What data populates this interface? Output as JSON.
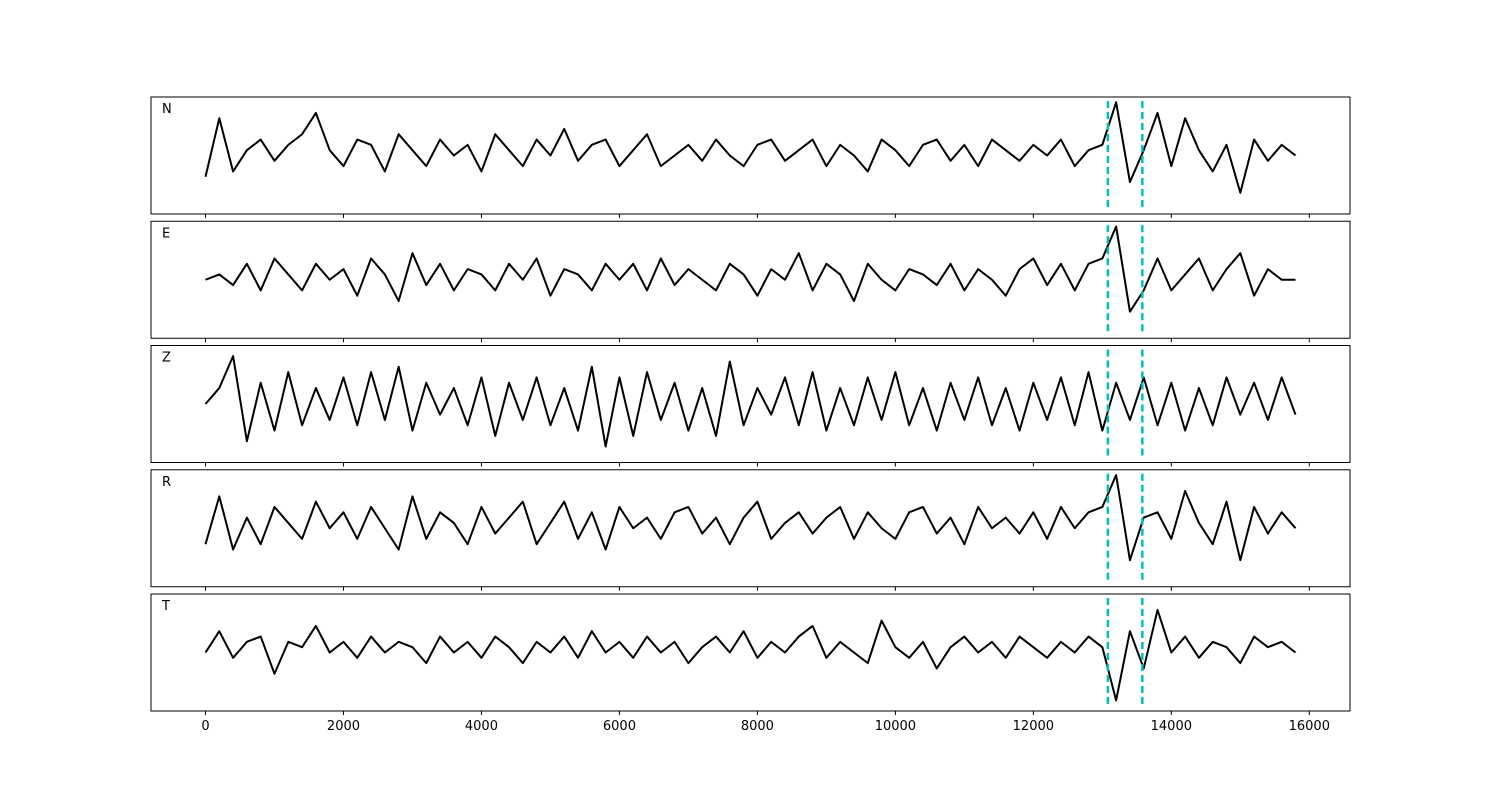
{
  "chart_data": {
    "type": "line",
    "x": [
      0,
      200,
      400,
      600,
      800,
      1000,
      1200,
      1400,
      1600,
      1800,
      2000,
      2200,
      2400,
      2600,
      2800,
      3000,
      3200,
      3400,
      3600,
      3800,
      4000,
      4200,
      4400,
      4600,
      4800,
      5000,
      5200,
      5400,
      5600,
      5800,
      6000,
      6200,
      6400,
      6600,
      6800,
      7000,
      7200,
      7400,
      7600,
      7800,
      8000,
      8200,
      8400,
      8600,
      8800,
      9000,
      9200,
      9400,
      9600,
      9800,
      10000,
      10200,
      10400,
      10600,
      10800,
      11000,
      11200,
      11400,
      11600,
      11800,
      12000,
      12200,
      12400,
      12600,
      12800,
      13000,
      13200,
      13400,
      13600,
      13800,
      14000,
      14200,
      14400,
      14600,
      14800,
      15000,
      15200,
      15400,
      15600,
      15800
    ],
    "xlim": [
      -790,
      16590
    ],
    "xticks": [
      0,
      2000,
      4000,
      6000,
      8000,
      10000,
      12000,
      14000,
      16000
    ],
    "ylim": [
      -1.1,
      1.1
    ],
    "vlines": {
      "x": [
        13080,
        13580
      ],
      "color": "#00bfbf"
    },
    "series": [
      {
        "name": "N",
        "color": "#000000",
        "values": [
          -0.4,
          0.7,
          -0.3,
          0.1,
          0.3,
          -0.1,
          0.2,
          0.4,
          0.8,
          0.1,
          -0.2,
          0.3,
          0.2,
          -0.3,
          0.4,
          0.1,
          -0.2,
          0.3,
          0.0,
          0.2,
          -0.3,
          0.4,
          0.1,
          -0.2,
          0.3,
          0.0,
          0.5,
          -0.1,
          0.2,
          0.3,
          -0.2,
          0.1,
          0.4,
          -0.2,
          0.0,
          0.2,
          -0.1,
          0.3,
          0.0,
          -0.2,
          0.2,
          0.3,
          -0.1,
          0.1,
          0.3,
          -0.2,
          0.2,
          0.0,
          -0.3,
          0.3,
          0.1,
          -0.2,
          0.2,
          0.3,
          -0.1,
          0.2,
          -0.2,
          0.3,
          0.1,
          -0.1,
          0.2,
          0.0,
          0.3,
          -0.2,
          0.1,
          0.2,
          1.0,
          -0.5,
          0.1,
          0.8,
          -0.2,
          0.7,
          0.1,
          -0.3,
          0.2,
          -0.7,
          0.3,
          -0.1,
          0.2,
          0.0
        ]
      },
      {
        "name": "E",
        "color": "#000000",
        "values": [
          0.0,
          0.1,
          -0.1,
          0.3,
          -0.2,
          0.4,
          0.1,
          -0.2,
          0.3,
          0.0,
          0.2,
          -0.3,
          0.4,
          0.1,
          -0.4,
          0.5,
          -0.1,
          0.3,
          -0.2,
          0.2,
          0.1,
          -0.2,
          0.3,
          0.0,
          0.4,
          -0.3,
          0.2,
          0.1,
          -0.2,
          0.3,
          0.0,
          0.3,
          -0.2,
          0.4,
          -0.1,
          0.2,
          0.0,
          -0.2,
          0.3,
          0.1,
          -0.3,
          0.2,
          0.0,
          0.5,
          -0.2,
          0.3,
          0.1,
          -0.4,
          0.3,
          0.0,
          -0.2,
          0.2,
          0.1,
          -0.1,
          0.3,
          -0.2,
          0.2,
          0.0,
          -0.3,
          0.2,
          0.4,
          -0.1,
          0.3,
          -0.2,
          0.3,
          0.4,
          1.0,
          -0.6,
          -0.2,
          0.4,
          -0.2,
          0.1,
          0.4,
          -0.2,
          0.2,
          0.5,
          -0.3,
          0.2,
          0.0,
          0.0
        ]
      },
      {
        "name": "Z",
        "color": "#000000",
        "values": [
          0.0,
          0.3,
          0.9,
          -0.7,
          0.4,
          -0.5,
          0.6,
          -0.4,
          0.3,
          -0.3,
          0.5,
          -0.4,
          0.6,
          -0.3,
          0.7,
          -0.5,
          0.4,
          -0.2,
          0.3,
          -0.4,
          0.5,
          -0.6,
          0.4,
          -0.3,
          0.5,
          -0.4,
          0.3,
          -0.5,
          0.7,
          -0.8,
          0.5,
          -0.6,
          0.6,
          -0.3,
          0.4,
          -0.5,
          0.3,
          -0.6,
          0.8,
          -0.4,
          0.3,
          -0.2,
          0.5,
          -0.4,
          0.6,
          -0.5,
          0.3,
          -0.4,
          0.5,
          -0.3,
          0.6,
          -0.4,
          0.3,
          -0.5,
          0.4,
          -0.3,
          0.5,
          -0.4,
          0.3,
          -0.5,
          0.4,
          -0.3,
          0.5,
          -0.4,
          0.6,
          -0.5,
          0.4,
          -0.3,
          0.5,
          -0.4,
          0.4,
          -0.5,
          0.3,
          -0.4,
          0.5,
          -0.2,
          0.4,
          -0.3,
          0.5,
          -0.2
        ]
      },
      {
        "name": "R",
        "color": "#000000",
        "values": [
          -0.3,
          0.6,
          -0.4,
          0.2,
          -0.3,
          0.4,
          0.1,
          -0.2,
          0.5,
          0.0,
          0.3,
          -0.2,
          0.4,
          0.0,
          -0.4,
          0.6,
          -0.2,
          0.3,
          0.1,
          -0.3,
          0.4,
          -0.1,
          0.2,
          0.5,
          -0.3,
          0.1,
          0.5,
          -0.2,
          0.3,
          -0.4,
          0.4,
          0.0,
          0.2,
          -0.2,
          0.3,
          0.4,
          -0.1,
          0.2,
          -0.3,
          0.2,
          0.5,
          -0.2,
          0.1,
          0.3,
          -0.1,
          0.2,
          0.4,
          -0.2,
          0.3,
          0.0,
          -0.2,
          0.3,
          0.4,
          -0.1,
          0.2,
          -0.3,
          0.4,
          0.0,
          0.2,
          -0.1,
          0.3,
          -0.2,
          0.4,
          0.0,
          0.3,
          0.4,
          1.0,
          -0.6,
          0.2,
          0.3,
          -0.2,
          0.7,
          0.1,
          -0.3,
          0.5,
          -0.6,
          0.4,
          -0.1,
          0.3,
          0.0
        ]
      },
      {
        "name": "T",
        "color": "#000000",
        "values": [
          0.0,
          0.4,
          -0.1,
          0.2,
          0.3,
          -0.4,
          0.2,
          0.1,
          0.5,
          0.0,
          0.2,
          -0.1,
          0.3,
          0.0,
          0.2,
          0.1,
          -0.2,
          0.3,
          0.0,
          0.2,
          -0.1,
          0.3,
          0.1,
          -0.2,
          0.2,
          0.0,
          0.3,
          -0.1,
          0.4,
          0.0,
          0.2,
          -0.1,
          0.3,
          0.0,
          0.2,
          -0.2,
          0.1,
          0.3,
          0.0,
          0.4,
          -0.1,
          0.2,
          0.0,
          0.3,
          0.5,
          -0.1,
          0.2,
          0.0,
          -0.2,
          0.6,
          0.1,
          -0.1,
          0.2,
          -0.3,
          0.1,
          0.3,
          0.0,
          0.2,
          -0.1,
          0.3,
          0.1,
          -0.1,
          0.2,
          0.0,
          0.3,
          0.1,
          -0.9,
          0.4,
          -0.3,
          0.8,
          0.0,
          0.3,
          -0.1,
          0.2,
          0.1,
          -0.2,
          0.3,
          0.1,
          0.2,
          0.0
        ]
      }
    ]
  }
}
